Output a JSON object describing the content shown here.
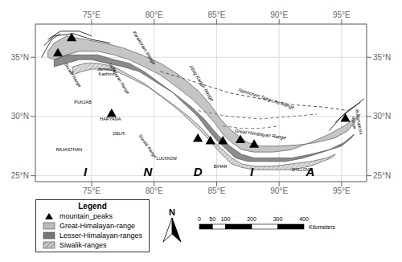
{
  "chart_data": {
    "type": "map",
    "xlim": [
      70.5,
      97.0
    ],
    "ylim": [
      24.5,
      37.8
    ],
    "xticks": [
      {
        "value": 75,
        "label": "75°E"
      },
      {
        "value": 80,
        "label": "80°E"
      },
      {
        "value": 85,
        "label": "85°E"
      },
      {
        "value": 90,
        "label": "90°E"
      },
      {
        "value": 95,
        "label": "95°E"
      }
    ],
    "yticks": [
      {
        "value": 25,
        "label": "25°N"
      },
      {
        "value": 30,
        "label": "30°N"
      },
      {
        "value": 35,
        "label": "35°N"
      }
    ],
    "grid": true,
    "legend_title": "Legend",
    "north_arrow": "N",
    "scale_bar": {
      "values": [
        0,
        50,
        100,
        200,
        300,
        400
      ],
      "label": "Kilometers"
    },
    "series": [
      {
        "type": "hatched_polygon",
        "name": "Siwalik-ranges",
        "color": "#cccccc",
        "values": [
          [
            73.5,
            34.2
          ],
          [
            74.5,
            34.5
          ],
          [
            75.5,
            34.5
          ],
          [
            76.8,
            34.2
          ],
          [
            78.0,
            33.5
          ],
          [
            79.2,
            32.8
          ],
          [
            80.5,
            31.8
          ],
          [
            81.8,
            30.8
          ],
          [
            83.0,
            29.8
          ],
          [
            84.0,
            28.8
          ],
          [
            84.8,
            27.8
          ],
          [
            85.5,
            27.2
          ],
          [
            86.2,
            26.5
          ],
          [
            87.0,
            26.0
          ],
          [
            88.0,
            25.8
          ],
          [
            89.5,
            25.8
          ],
          [
            91.0,
            26.0
          ],
          [
            92.5,
            26.2
          ],
          [
            93.8,
            26.5
          ],
          [
            94.5,
            26.8
          ],
          [
            94.2,
            26.5
          ],
          [
            92.5,
            25.8
          ],
          [
            91.0,
            25.5
          ],
          [
            89.5,
            25.5
          ],
          [
            88.0,
            25.5
          ],
          [
            87.0,
            25.7
          ],
          [
            86.2,
            26.0
          ],
          [
            85.5,
            26.7
          ],
          [
            84.8,
            27.5
          ],
          [
            84.0,
            28.5
          ],
          [
            83.0,
            29.5
          ],
          [
            82.0,
            30.5
          ],
          [
            80.8,
            31.5
          ],
          [
            79.5,
            32.5
          ],
          [
            78.2,
            33.2
          ],
          [
            77.0,
            33.8
          ],
          [
            76.0,
            34.0
          ],
          [
            75.0,
            34.0
          ],
          [
            74.2,
            33.8
          ],
          [
            73.5,
            33.5
          ],
          [
            73.5,
            34.2
          ]
        ]
      },
      {
        "type": "polygon",
        "name": "Lesser-Himalayan-ranges",
        "color": "#777777",
        "values": [
          [
            72.0,
            34.8
          ],
          [
            73.0,
            35.2
          ],
          [
            74.0,
            35.2
          ],
          [
            75.5,
            35.2
          ],
          [
            76.8,
            34.8
          ],
          [
            78.0,
            34.5
          ],
          [
            79.2,
            33.8
          ],
          [
            80.5,
            32.8
          ],
          [
            81.8,
            31.8
          ],
          [
            83.0,
            30.8
          ],
          [
            84.0,
            29.8
          ],
          [
            84.8,
            28.8
          ],
          [
            85.5,
            28.0
          ],
          [
            86.2,
            27.4
          ],
          [
            87.0,
            26.8
          ],
          [
            88.0,
            26.5
          ],
          [
            89.5,
            26.5
          ],
          [
            91.0,
            26.5
          ],
          [
            92.5,
            26.8
          ],
          [
            94.0,
            27.2
          ],
          [
            95.2,
            27.8
          ],
          [
            96.0,
            28.5
          ],
          [
            95.8,
            28.2
          ],
          [
            95.0,
            27.5
          ],
          [
            93.5,
            27.0
          ],
          [
            92.0,
            26.5
          ],
          [
            90.5,
            26.2
          ],
          [
            89.0,
            26.2
          ],
          [
            87.5,
            26.2
          ],
          [
            86.5,
            26.5
          ],
          [
            85.8,
            27.2
          ],
          [
            85.0,
            28.0
          ],
          [
            84.2,
            29.0
          ],
          [
            83.5,
            30.0
          ],
          [
            82.5,
            31.0
          ],
          [
            81.5,
            32.0
          ],
          [
            80.0,
            33.0
          ],
          [
            78.8,
            33.8
          ],
          [
            77.5,
            34.2
          ],
          [
            76.2,
            34.5
          ],
          [
            75.0,
            34.8
          ],
          [
            74.0,
            34.8
          ],
          [
            73.0,
            34.5
          ],
          [
            72.0,
            34.2
          ],
          [
            72.0,
            34.8
          ]
        ]
      },
      {
        "type": "polygon",
        "name": "Great-Himalayan-range",
        "color": "#bbbbbb",
        "values": [
          [
            71.5,
            35.5
          ],
          [
            72.0,
            36.2
          ],
          [
            73.0,
            36.8
          ],
          [
            74.5,
            36.5
          ],
          [
            76.0,
            36.2
          ],
          [
            77.5,
            35.8
          ],
          [
            79.0,
            35.2
          ],
          [
            80.5,
            34.5
          ],
          [
            82.0,
            33.5
          ],
          [
            83.5,
            32.2
          ],
          [
            84.5,
            31.0
          ],
          [
            85.3,
            29.8
          ],
          [
            86.0,
            29.0
          ],
          [
            86.8,
            28.3
          ],
          [
            87.5,
            27.8
          ],
          [
            88.5,
            27.5
          ],
          [
            90.0,
            27.5
          ],
          [
            91.5,
            27.6
          ],
          [
            93.0,
            27.8
          ],
          [
            94.5,
            28.2
          ],
          [
            95.5,
            28.8
          ],
          [
            96.0,
            29.5
          ],
          [
            96.5,
            30.2
          ],
          [
            96.0,
            29.8
          ],
          [
            95.2,
            29.2
          ],
          [
            94.0,
            28.5
          ],
          [
            92.5,
            27.8
          ],
          [
            91.0,
            27.2
          ],
          [
            89.5,
            27.0
          ],
          [
            88.0,
            27.0
          ],
          [
            87.0,
            27.2
          ],
          [
            86.2,
            27.8
          ],
          [
            85.5,
            28.5
          ],
          [
            84.8,
            29.5
          ],
          [
            84.0,
            30.5
          ],
          [
            83.0,
            31.5
          ],
          [
            81.8,
            32.5
          ],
          [
            80.5,
            33.5
          ],
          [
            79.2,
            34.2
          ],
          [
            78.0,
            34.8
          ],
          [
            76.8,
            35.2
          ],
          [
            75.5,
            35.5
          ],
          [
            74.0,
            35.5
          ],
          [
            73.0,
            35.2
          ],
          [
            72.0,
            34.8
          ],
          [
            71.5,
            35.0
          ],
          [
            71.5,
            35.5
          ]
        ]
      },
      {
        "type": "line",
        "color": "#000000",
        "line_style": "solid",
        "values": [
          [
            71.5,
            36.5
          ],
          [
            72.5,
            37.2
          ],
          [
            74.0,
            37.2
          ],
          [
            75.0,
            36.8
          ]
        ]
      },
      {
        "type": "line",
        "color": "#000000",
        "line_style": "solid",
        "values": [
          [
            71.2,
            36.0
          ],
          [
            72.0,
            36.8
          ],
          [
            73.5,
            37.0
          ],
          [
            75.0,
            36.5
          ],
          [
            76.5,
            36.2
          ]
        ]
      },
      {
        "type": "line",
        "color": "#000000",
        "line_style": "solid",
        "values": [
          [
            71.0,
            35.0
          ],
          [
            71.8,
            36.5
          ],
          [
            72.5,
            37.0
          ]
        ]
      },
      {
        "type": "line",
        "color": "#000000",
        "line_style": "solid",
        "values": [
          [
            94.5,
            29.5
          ],
          [
            95.5,
            30.5
          ],
          [
            96.5,
            31.2
          ]
        ]
      },
      {
        "type": "line",
        "color": "#000000",
        "line_style": "solid",
        "values": [
          [
            94.0,
            28.8
          ],
          [
            95.0,
            30.0
          ],
          [
            96.0,
            30.8
          ],
          [
            96.8,
            31.5
          ]
        ]
      },
      {
        "type": "line",
        "color": "#555555",
        "line_style": "dashed",
        "values": [
          [
            80.5,
            33.8
          ],
          [
            83.0,
            33.0
          ],
          [
            86.0,
            32.0
          ],
          [
            88.5,
            31.5
          ],
          [
            91.0,
            31.0
          ],
          [
            93.5,
            30.8
          ],
          [
            95.5,
            30.5
          ]
        ]
      },
      {
        "type": "line",
        "color": "#777777",
        "line_style": "dashed",
        "values": [
          [
            83.5,
            30.5
          ],
          [
            86.0,
            30.0
          ],
          [
            88.5,
            29.8
          ],
          [
            91.0,
            30.0
          ],
          [
            93.0,
            30.2
          ]
        ]
      },
      {
        "type": "line",
        "color": "#777777",
        "line_style": "dashed",
        "values": [
          [
            85.5,
            29.2
          ],
          [
            87.0,
            29.0
          ],
          [
            88.5,
            29.0
          ],
          [
            90.0,
            29.2
          ]
        ]
      },
      {
        "type": "scatter",
        "name": "mountain_peaks",
        "color": "#000000",
        "marker": "triangle",
        "values": [
          [
            73.4,
            36.6
          ],
          [
            72.3,
            35.3
          ],
          [
            76.6,
            30.2
          ],
          [
            83.5,
            28.1
          ],
          [
            84.5,
            27.9
          ],
          [
            85.5,
            27.9
          ],
          [
            86.9,
            28.0
          ],
          [
            88.0,
            27.6
          ],
          [
            95.3,
            29.8
          ]
        ]
      }
    ],
    "annotations": [
      {
        "text": "Karakoram Range",
        "x": 79.2,
        "y": 35.8
      },
      {
        "text": "Aling Kangri Range",
        "x": 83.8,
        "y": 32.8
      },
      {
        "text": "Nyenchen Tang Lha Range",
        "x": 89.0,
        "y": 31.5
      },
      {
        "text": "Great Himalayan Range",
        "x": 88.5,
        "y": 28.5
      },
      {
        "text": "Siwalik Range",
        "x": 79.5,
        "y": 27.5
      },
      {
        "text": "Himalayan Range",
        "x": 77.2,
        "y": 33.2
      },
      {
        "text": "Siwalik Range",
        "x": 73.5,
        "y": 33.5
      },
      {
        "text": "Jammu &\nKashmir",
        "x": 76.2,
        "y": 33.8
      },
      {
        "text": "PUNJAB",
        "x": 74.3,
        "y": 31.2
      },
      {
        "text": "HARYANA",
        "x": 76.5,
        "y": 29.8
      },
      {
        "text": "RAJASTHAN",
        "x": 73.2,
        "y": 27.2
      },
      {
        "text": "LUCKNOW",
        "x": 81.0,
        "y": 26.5
      },
      {
        "text": "DELHI",
        "x": 77.2,
        "y": 28.6
      },
      {
        "text": "BIHAR",
        "x": 85.3,
        "y": 25.8
      },
      {
        "text": "SHILLONG",
        "x": 91.8,
        "y": 25.5
      },
      {
        "text": "Brahmaputra\nRange",
        "x": 96.2,
        "y": 29.5
      },
      {
        "text": "I",
        "x": 74.5,
        "y": 25.4
      },
      {
        "text": "N",
        "x": 79.5,
        "y": 25.4
      },
      {
        "text": "D",
        "x": 83.5,
        "y": 25.4
      },
      {
        "text": "I",
        "x": 87.8,
        "y": 25.4
      },
      {
        "text": "A",
        "x": 92.5,
        "y": 25.4
      }
    ]
  }
}
